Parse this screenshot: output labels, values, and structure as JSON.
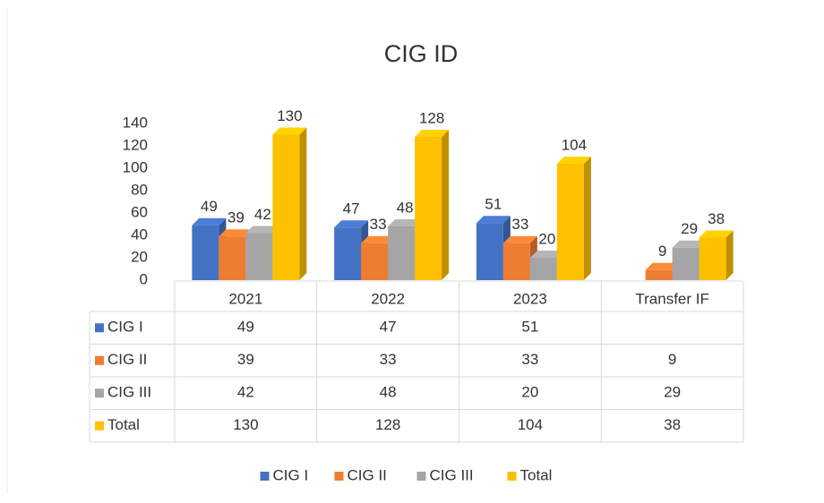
{
  "chart_data": {
    "type": "bar3d",
    "title": "CIG ID",
    "categories": [
      "2021",
      "2022",
      "2023",
      "Transfer IF"
    ],
    "series": [
      {
        "name": "CIG I",
        "color": "#4472c4",
        "values": [
          49,
          47,
          51,
          null
        ]
      },
      {
        "name": "CIG II",
        "color": "#ed7d31",
        "values": [
          39,
          33,
          33,
          9
        ]
      },
      {
        "name": "CIG III",
        "color": "#a5a5a5",
        "values": [
          42,
          48,
          20,
          29
        ]
      },
      {
        "name": "Total",
        "color": "#ffc000",
        "values": [
          130,
          128,
          104,
          38
        ]
      }
    ],
    "ylim": [
      0,
      140
    ],
    "yticks": [
      0,
      20,
      40,
      60,
      80,
      100,
      120,
      140
    ],
    "grid": false,
    "data_table": true,
    "legend": "bottom"
  }
}
